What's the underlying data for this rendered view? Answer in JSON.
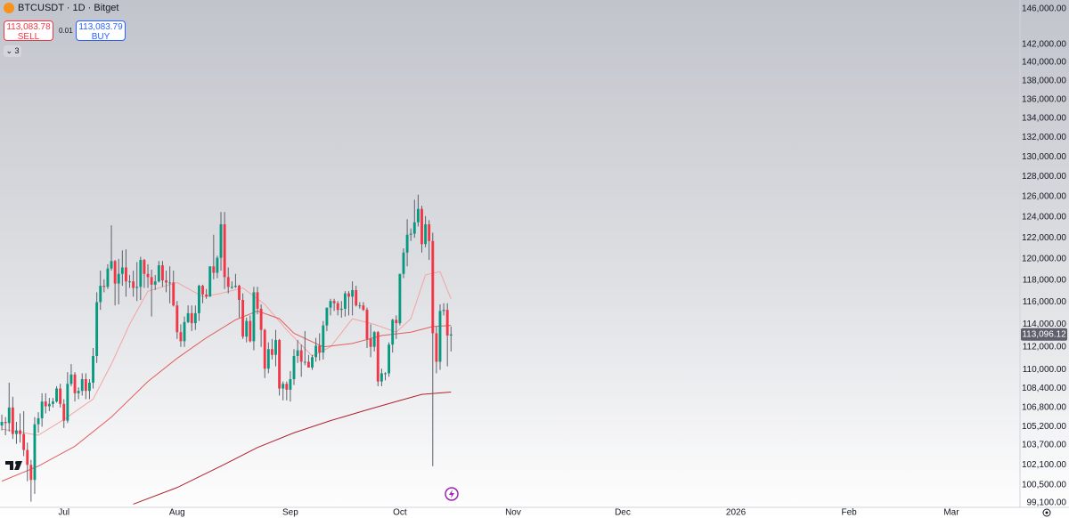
{
  "order_panel": {
    "sell_price": "113,083.78",
    "sell_label": "SELL",
    "spread": "0.01",
    "buy_price": "113,083.79",
    "buy_label": "BUY",
    "indicators": "3"
  },
  "chart_data": {
    "type": "candlestick",
    "title": "BTCUSDT · 1D · Bitget",
    "log_scale": true,
    "up_color": "#089981",
    "down_color": "#f23645",
    "wick_color": "#5d606b",
    "xlim": [
      -0.5,
      278.8
    ],
    "ylim": [
      98755,
      147023
    ],
    "xticks": [
      {
        "value": 17,
        "label": "Jul"
      },
      {
        "value": 48,
        "label": "Aug"
      },
      {
        "value": 79,
        "label": "Sep"
      },
      {
        "value": 109,
        "label": "Oct"
      },
      {
        "value": 140,
        "label": "Nov"
      },
      {
        "value": 170,
        "label": "Dec"
      },
      {
        "value": 201,
        "label": "2026"
      },
      {
        "value": 232,
        "label": "Feb"
      },
      {
        "value": 260,
        "label": "Mar"
      }
    ],
    "yticks": [
      {
        "value": 146000,
        "label": "146,000.00"
      },
      {
        "value": 142000,
        "label": "142,000.00"
      },
      {
        "value": 140000,
        "label": "140,000.00"
      },
      {
        "value": 138000,
        "label": "138,000.00"
      },
      {
        "value": 136000,
        "label": "136,000.00"
      },
      {
        "value": 134000,
        "label": "134,000.00"
      },
      {
        "value": 132000,
        "label": "132,000.00"
      },
      {
        "value": 130000,
        "label": "130,000.00"
      },
      {
        "value": 128000,
        "label": "128,000.00"
      },
      {
        "value": 126000,
        "label": "126,000.00"
      },
      {
        "value": 124000,
        "label": "124,000.00"
      },
      {
        "value": 122000,
        "label": "122,000.00"
      },
      {
        "value": 120000,
        "label": "120,000.00"
      },
      {
        "value": 118000,
        "label": "118,000.00"
      },
      {
        "value": 116000,
        "label": "116,000.00"
      },
      {
        "value": 114000,
        "label": "114,000.00"
      },
      {
        "value": 112000,
        "label": "112,000.00"
      },
      {
        "value": 110000,
        "label": "110,000.00"
      },
      {
        "value": 108400,
        "label": "108,400.00"
      },
      {
        "value": 106800,
        "label": "106,800.00"
      },
      {
        "value": 105200,
        "label": "105,200.00"
      },
      {
        "value": 103700,
        "label": "103,700.00"
      },
      {
        "value": 102100,
        "label": "102,100.00"
      },
      {
        "value": 100500,
        "label": "100,500.00"
      },
      {
        "value": 99100,
        "label": "99,100.00"
      }
    ],
    "last_price": {
      "value": 113096.12,
      "label": "113,096.12"
    },
    "open": [
      105300,
      105600,
      105500,
      106800,
      104600,
      104900,
      104600,
      103300,
      102100,
      100900,
      105400,
      105900,
      107300,
      106900,
      107100,
      107300,
      108400,
      107100,
      105700,
      108800,
      109600,
      108000,
      108200,
      109200,
      108200,
      108900,
      111200,
      116000,
      117500,
      117400,
      119100,
      119800,
      117700,
      118600,
      119200,
      117900,
      117900,
      117300,
      117400,
      119900,
      118600,
      118300,
      117600,
      117900,
      119400,
      118000,
      117800,
      117800,
      115700,
      113300,
      112500,
      114200,
      115000,
      114100,
      115000,
      117500,
      116700,
      116500,
      119300,
      118700,
      120100,
      123300,
      118300,
      117400,
      117400,
      117500,
      116200,
      112900,
      114300,
      112500,
      116900,
      115400,
      113500,
      110100,
      111800,
      111300,
      112600,
      108400,
      108800,
      108300,
      109200,
      111200,
      111700,
      110700,
      110700,
      110200,
      111100,
      112100,
      111500,
      113900,
      115500,
      116100,
      115900,
      115300,
      115400,
      116800,
      116500,
      117100,
      115700,
      115700,
      115300,
      112700,
      112000,
      113300,
      109000,
      109700,
      109700,
      112200,
      114400,
      114100,
      118600,
      120600,
      122300,
      122400,
      123500,
      124800,
      121400,
      123300,
      121700,
      113200,
      110700,
      115200,
      115300,
      113000
    ],
    "high": [
      106200,
      106000,
      108900,
      107700,
      105600,
      106300,
      106500,
      103900,
      102500,
      106000,
      106400,
      108000,
      108000,
      107600,
      107600,
      108600,
      108800,
      107500,
      109800,
      110500,
      109800,
      108500,
      109700,
      109700,
      109200,
      111900,
      116900,
      118900,
      118100,
      119500,
      123200,
      119900,
      120000,
      120800,
      120900,
      118500,
      118900,
      119700,
      120200,
      120000,
      119500,
      119000,
      118500,
      119800,
      119800,
      118900,
      119300,
      118900,
      116100,
      114000,
      114700,
      115700,
      115700,
      115700,
      117600,
      117600,
      117200,
      119300,
      122300,
      120300,
      124500,
      124500,
      119200,
      117900,
      118600,
      117600,
      116800,
      114600,
      114800,
      117400,
      117400,
      115800,
      113600,
      112400,
      112700,
      113500,
      112700,
      109000,
      109000,
      109900,
      111800,
      112600,
      112200,
      113400,
      111300,
      111300,
      112800,
      113200,
      114300,
      115500,
      116300,
      116300,
      116100,
      116100,
      117000,
      117000,
      117900,
      117500,
      116000,
      116000,
      115500,
      114000,
      113400,
      113400,
      110100,
      109800,
      112400,
      114500,
      114800,
      118600,
      121000,
      123800,
      122900,
      125700,
      126200,
      125100,
      124100,
      123700,
      122500,
      113800,
      115800,
      115900,
      115900,
      113800
    ],
    "low": [
      104900,
      104500,
      104800,
      104200,
      103800,
      103900,
      102800,
      100800,
      99200,
      99800,
      104700,
      105200,
      106300,
      106500,
      106800,
      107200,
      106800,
      105100,
      105500,
      108600,
      107300,
      107500,
      107800,
      107500,
      107500,
      108400,
      110600,
      115300,
      116900,
      117200,
      118900,
      115700,
      115800,
      117500,
      116500,
      117300,
      116500,
      116100,
      116200,
      117300,
      117300,
      114700,
      117100,
      117800,
      117400,
      116900,
      115900,
      115600,
      112700,
      112000,
      112000,
      114100,
      113400,
      113500,
      114300,
      115900,
      116300,
      116500,
      118100,
      118200,
      118900,
      117200,
      116800,
      117200,
      117300,
      114600,
      112700,
      112400,
      112400,
      111700,
      114900,
      112000,
      109300,
      109700,
      110900,
      110300,
      107800,
      107400,
      107400,
      107300,
      108700,
      110600,
      109400,
      110400,
      110200,
      110000,
      110700,
      110800,
      110900,
      113400,
      114800,
      115200,
      114800,
      114600,
      114700,
      114800,
      114800,
      115600,
      115400,
      115200,
      111900,
      111100,
      111600,
      108600,
      108600,
      109100,
      109400,
      111500,
      112700,
      113900,
      118200,
      119300,
      121700,
      122000,
      123100,
      120600,
      121100,
      119900,
      102000,
      109700,
      110000,
      114800,
      110300,
      111600
    ],
    "close": [
      105600,
      105500,
      106800,
      104600,
      104900,
      104600,
      103300,
      102100,
      100900,
      105400,
      105900,
      107300,
      106900,
      107100,
      107300,
      108400,
      107100,
      105700,
      108800,
      109600,
      108000,
      108200,
      109200,
      108200,
      108900,
      111200,
      116000,
      117500,
      117400,
      119100,
      119800,
      117700,
      118600,
      119200,
      117900,
      117900,
      117300,
      117400,
      119900,
      118600,
      118300,
      117600,
      117900,
      119400,
      118000,
      117800,
      117800,
      115700,
      113300,
      112500,
      114200,
      115000,
      114100,
      115000,
      117500,
      116700,
      116500,
      119300,
      118700,
      120100,
      123300,
      118300,
      117400,
      117400,
      117500,
      116200,
      112900,
      114300,
      112500,
      116900,
      115400,
      113500,
      110100,
      111800,
      111300,
      112600,
      108400,
      108800,
      108300,
      109200,
      111200,
      111700,
      110700,
      110700,
      110200,
      111100,
      112100,
      111500,
      113900,
      115500,
      116100,
      115900,
      115300,
      115400,
      116800,
      116500,
      117100,
      115700,
      115700,
      115300,
      112700,
      112000,
      113300,
      109000,
      109700,
      109700,
      112200,
      114400,
      114100,
      118600,
      120600,
      122300,
      122400,
      123500,
      124800,
      121400,
      123300,
      121700,
      113200,
      110700,
      115200,
      115300,
      113000,
      113100
    ],
    "lines": [
      {
        "color": "#f4a3a3",
        "x": [
          0,
          10,
          17,
          25,
          30,
          35,
          40,
          48,
          55,
          60,
          66,
          72,
          78,
          85,
          90,
          96,
          102,
          108,
          112,
          116,
          120,
          123
        ],
        "values": [
          105000,
          104500,
          105800,
          107500,
          110500,
          114000,
          117000,
          117800,
          116500,
          116800,
          117300,
          115800,
          113500,
          111200,
          112000,
          114500,
          114000,
          113300,
          114500,
          118500,
          118800,
          116300
        ]
      },
      {
        "color": "#e0605e",
        "x": [
          0,
          10,
          20,
          30,
          40,
          48,
          56,
          64,
          70,
          76,
          80,
          88,
          96,
          104,
          112,
          118,
          123
        ],
        "values": [
          100800,
          102000,
          103600,
          106000,
          109000,
          111000,
          112800,
          114400,
          115200,
          114500,
          113200,
          112000,
          112300,
          113000,
          113300,
          113800,
          113900
        ]
      },
      {
        "color": "#b0222e",
        "x": [
          36,
          48,
          60,
          70,
          80,
          90,
          100,
          108,
          115,
          123
        ],
        "values": [
          99000,
          100300,
          102000,
          103500,
          104700,
          105700,
          106600,
          107300,
          107900,
          108100
        ]
      }
    ]
  }
}
